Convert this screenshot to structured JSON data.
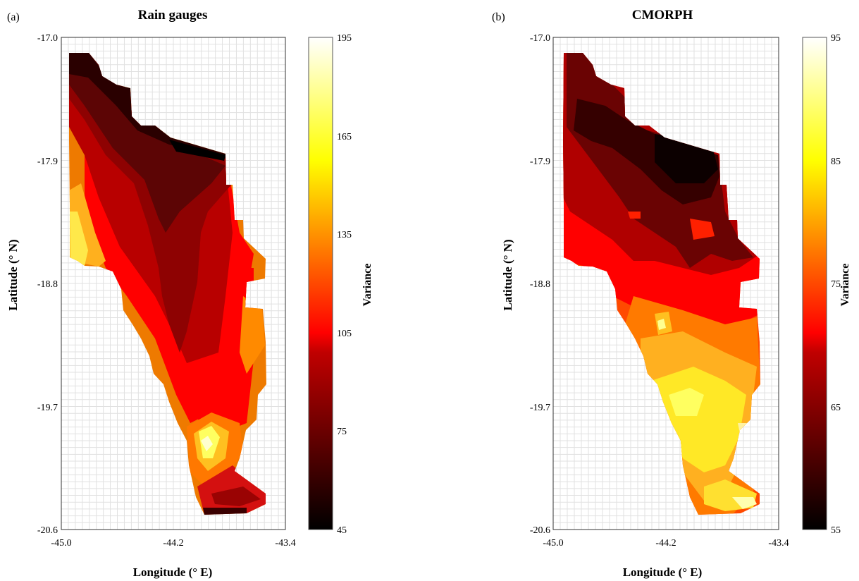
{
  "chart_data": [
    {
      "type": "heatmap",
      "panel_label": "(a)",
      "title": "Rain gauges",
      "xlabel": "Longitude (° E)",
      "ylabel": "Latitude (° N)",
      "xlim": [
        -45.0,
        -43.4
      ],
      "ylim": [
        -20.6,
        -17.0
      ],
      "xticks": [
        "-45.0",
        "-44.2",
        "-43.4"
      ],
      "yticks": [
        "-17.0",
        "-17.9",
        "-18.8",
        "-19.7",
        "-20.6"
      ],
      "grid": true,
      "colorbar": {
        "label": "Variance",
        "range": [
          45,
          195
        ],
        "ticks": [
          "195",
          "165",
          "135",
          "105",
          "75",
          "45"
        ],
        "colormap": "hot"
      },
      "regions": [
        {
          "value": 52,
          "points": [
            [
              -45.0,
              -17.1
            ],
            [
              -44.86,
              -17.1
            ],
            [
              -44.78,
              -17.35
            ],
            [
              -44.6,
              -17.4
            ],
            [
              -44.45,
              -17.65
            ],
            [
              -44.3,
              -17.65
            ],
            [
              -44.1,
              -17.78
            ],
            [
              -43.9,
              -17.9
            ],
            [
              -43.95,
              -18.05
            ],
            [
              -44.2,
              -18.15
            ],
            [
              -44.45,
              -17.95
            ],
            [
              -44.7,
              -17.7
            ],
            [
              -44.95,
              -17.45
            ],
            [
              -45.0,
              -17.3
            ]
          ]
        },
        {
          "value": 180,
          "points": [
            [
              -44.0,
              -19.9
            ],
            [
              -43.88,
              -20.0
            ],
            [
              -43.95,
              -20.15
            ],
            [
              -44.05,
              -20.18
            ],
            [
              -44.08,
              -20.05
            ]
          ]
        },
        {
          "value": 45,
          "points": [
            [
              -44.05,
              -20.48
            ],
            [
              -43.75,
              -20.48
            ],
            [
              -43.74,
              -20.55
            ],
            [
              -44.04,
              -20.55
            ]
          ]
        }
      ]
    },
    {
      "type": "heatmap",
      "panel_label": "(b)",
      "title": "CMORPH",
      "xlabel": "Longitude (° E)",
      "ylabel": "Latitude (° N)",
      "xlim": [
        -45.0,
        -43.4
      ],
      "ylim": [
        -20.6,
        -17.0
      ],
      "xticks": [
        "-45.0",
        "-44.2",
        "-43.4"
      ],
      "yticks": [
        "-17.0",
        "-17.9",
        "-18.8",
        "-19.7",
        "-20.6"
      ],
      "grid": true,
      "colorbar": {
        "label": "Variance",
        "range": [
          55,
          95
        ],
        "ticks": [
          "95",
          "85",
          "75",
          "65",
          "55"
        ],
        "colormap": "hot"
      },
      "regions": [
        {
          "value": 57,
          "points": [
            [
              -44.95,
              -17.45
            ],
            [
              -44.65,
              -17.42
            ],
            [
              -44.45,
              -17.68
            ],
            [
              -44.1,
              -17.7
            ],
            [
              -43.9,
              -18.0
            ],
            [
              -43.9,
              -18.3
            ],
            [
              -43.7,
              -18.55
            ],
            [
              -43.95,
              -18.6
            ],
            [
              -44.2,
              -18.55
            ],
            [
              -44.45,
              -18.3
            ],
            [
              -44.7,
              -18.05
            ],
            [
              -44.9,
              -17.9
            ]
          ]
        },
        {
          "value": 88,
          "points": [
            [
              -44.3,
              -19.4
            ],
            [
              -43.95,
              -19.45
            ],
            [
              -43.72,
              -19.65
            ],
            [
              -43.8,
              -19.95
            ],
            [
              -43.95,
              -20.2
            ],
            [
              -44.15,
              -20.1
            ],
            [
              -44.2,
              -19.8
            ],
            [
              -44.35,
              -19.6
            ]
          ]
        },
        {
          "value": 92,
          "points": [
            [
              -44.28,
              -19.05
            ],
            [
              -44.2,
              -19.05
            ],
            [
              -44.18,
              -19.15
            ],
            [
              -44.26,
              -19.18
            ]
          ]
        }
      ]
    }
  ]
}
